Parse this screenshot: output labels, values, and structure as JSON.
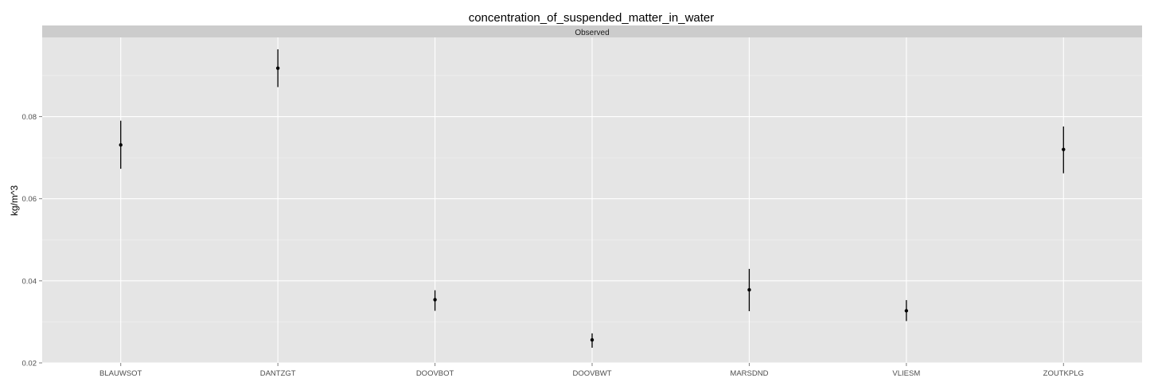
{
  "chart_data": {
    "type": "scatter",
    "title": "concentration_of_suspended_matter_in_water",
    "facet_label": "Observed",
    "xlabel": "",
    "ylabel": "kg/m^3",
    "categories": [
      "BLAUWSOT",
      "DANTZGT",
      "DOOVBOT",
      "DOOVBWT",
      "MARSDND",
      "VLIESM",
      "ZOUTKPLG"
    ],
    "values": [
      0.0731,
      0.0918,
      0.0354,
      0.0256,
      0.0378,
      0.0327,
      0.072
    ],
    "error_low": [
      0.0673,
      0.0872,
      0.0327,
      0.0237,
      0.0326,
      0.0302,
      0.0662
    ],
    "error_high": [
      0.079,
      0.0964,
      0.0377,
      0.0272,
      0.0429,
      0.0353,
      0.0776
    ],
    "ylim": [
      0.02,
      0.0993
    ],
    "yticks": [
      0.02,
      0.04,
      0.06,
      0.08
    ],
    "ytick_labels": [
      "0.02",
      "0.04",
      "0.06",
      "0.08"
    ],
    "grid": true,
    "colors": {
      "panel_bg": "#e5e5e5",
      "strip_bg": "#cccccc",
      "grid_major": "#ffffff",
      "grid_minor": "#f2f2f2",
      "point": "#000000",
      "tick_text": "#4d4d4d"
    }
  }
}
